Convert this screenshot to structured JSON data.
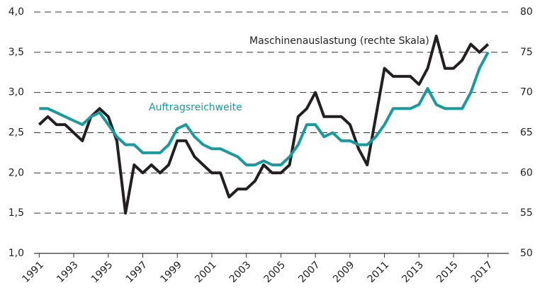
{
  "chart_data": {
    "type": "line",
    "x": [
      1991,
      1991.5,
      1992,
      1992.5,
      1993,
      1993.5,
      1994,
      1994.5,
      1995,
      1995.5,
      1996,
      1996.5,
      1997,
      1997.5,
      1998,
      1998.5,
      1999,
      1999.5,
      2000,
      2000.5,
      2001,
      2001.5,
      2002,
      2002.5,
      2003,
      2003.5,
      2004,
      2004.5,
      2005,
      2005.5,
      2006,
      2006.5,
      2007,
      2007.5,
      2008,
      2008.5,
      2009,
      2009.5,
      2010,
      2010.5,
      2011,
      2011.5,
      2012,
      2012.5,
      2013,
      2013.5,
      2014,
      2014.5,
      2015,
      2015.5,
      2016,
      2016.5,
      2017
    ],
    "series": [
      {
        "name": "Maschinenauslastung (rechte Skala)",
        "color": "#231f20",
        "axis": "y2",
        "values": [
          66,
          67,
          66,
          66,
          65,
          64,
          67,
          68,
          67,
          64,
          55,
          61,
          60,
          61,
          60,
          61,
          64,
          64,
          62,
          61,
          60,
          60,
          57,
          58,
          58,
          59,
          61,
          60,
          60,
          61,
          67,
          68,
          70,
          67,
          67,
          67,
          66,
          63,
          61,
          67,
          73,
          72,
          72,
          72,
          71,
          73,
          77,
          73,
          73,
          74,
          76,
          75,
          76
        ]
      },
      {
        "name": "Auftragsreichweite",
        "color": "#1a9a9c",
        "values": [
          2.8,
          2.8,
          2.75,
          2.7,
          2.65,
          2.6,
          2.7,
          2.75,
          2.6,
          2.45,
          2.35,
          2.35,
          2.25,
          2.25,
          2.25,
          2.35,
          2.55,
          2.6,
          2.45,
          2.35,
          2.3,
          2.3,
          2.25,
          2.2,
          2.1,
          2.1,
          2.15,
          2.1,
          2.1,
          2.2,
          2.35,
          2.6,
          2.6,
          2.45,
          2.5,
          2.4,
          2.4,
          2.35,
          2.35,
          2.45,
          2.6,
          2.8,
          2.8,
          2.8,
          2.85,
          3.05,
          2.85,
          2.8,
          2.8,
          2.8,
          3.0,
          3.3,
          3.5
        ]
      }
    ],
    "xlim": [
      1990.7,
      2018.2
    ],
    "xticks": [
      1991,
      1993,
      1995,
      1997,
      1999,
      2001,
      2003,
      2005,
      2007,
      2009,
      2011,
      2013,
      2015,
      2017
    ],
    "ylim": [
      1.0,
      4.0
    ],
    "yticks": [
      {
        "value": 1.0,
        "label": "1,0"
      },
      {
        "value": 1.5,
        "label": "1,5"
      },
      {
        "value": 2.0,
        "label": "2,0"
      },
      {
        "value": 2.5,
        "label": "2,5"
      },
      {
        "value": 3.0,
        "label": "3,0"
      },
      {
        "value": 3.5,
        "label": "3,5"
      },
      {
        "value": 4.0,
        "label": "4,0"
      }
    ],
    "y2lim": [
      50,
      80
    ],
    "y2ticks": [
      50,
      55,
      60,
      65,
      70,
      75,
      80
    ],
    "grid": true
  }
}
